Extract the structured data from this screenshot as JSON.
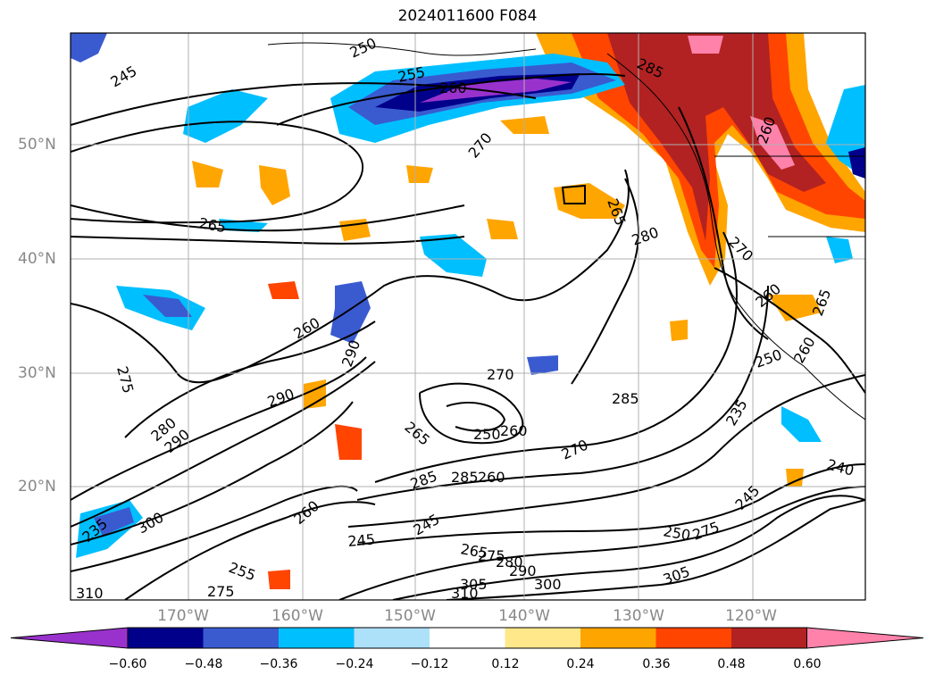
{
  "title": "2024011600 F084",
  "longitude_labels": [
    "170°W",
    "160°W",
    "150°W",
    "140°W",
    "130°W",
    "120°W"
  ],
  "latitude_labels": [
    "50°N",
    "40°N",
    "30°N",
    "20°N"
  ],
  "colorbar": {
    "colors": [
      "#9932cc",
      "#00008b",
      "#3a5bd0",
      "#00bfff",
      "#ade1fa",
      "#ffffff",
      "#ffe88a",
      "#ffa500",
      "#ff4500",
      "#b22222",
      "#ff82ab"
    ],
    "tick_labels": [
      "−0.60",
      "−0.48",
      "−0.36",
      "−0.24",
      "−0.12",
      "0.12",
      "0.24",
      "0.36",
      "0.48",
      "0.60"
    ]
  },
  "contour_labels": [
    "245",
    "250",
    "255",
    "260",
    "265",
    "270",
    "275",
    "280",
    "285",
    "290",
    "260",
    "265",
    "270",
    "275",
    "280",
    "285",
    "250",
    "260",
    "240",
    "245",
    "235",
    "305",
    "300",
    "310",
    "290",
    "275",
    "280",
    "265",
    "250",
    "255",
    "260",
    "270",
    "285",
    "280",
    "290",
    "300",
    "310",
    "255",
    "275",
    "265",
    "260",
    "250"
  ]
}
